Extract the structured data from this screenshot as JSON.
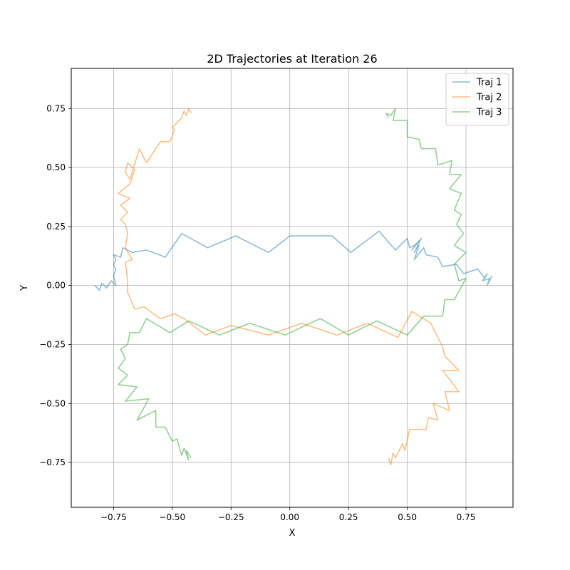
{
  "chart_data": {
    "type": "line",
    "title": "2D Trajectories at Iteration 26",
    "xlabel": "X",
    "ylabel": "Y",
    "xlim": [
      -0.93,
      0.95
    ],
    "ylim": [
      -0.94,
      0.92
    ],
    "xticks": [
      -0.75,
      -0.5,
      -0.25,
      0.0,
      0.25,
      0.5,
      0.75
    ],
    "xtick_labels": [
      "−0.75",
      "−0.50",
      "−0.25",
      "0.00",
      "0.25",
      "0.50",
      "0.75"
    ],
    "yticks": [
      -0.75,
      -0.5,
      -0.25,
      0.0,
      0.25,
      0.5,
      0.75
    ],
    "ytick_labels": [
      "−0.75",
      "−0.50",
      "−0.25",
      "0.00",
      "0.25",
      "0.50",
      "0.75"
    ],
    "grid": true,
    "legend_position": "top-right",
    "series": [
      {
        "name": "Traj 1",
        "color": "#1f77b4",
        "points": [
          [
            -0.83,
            0.0
          ],
          [
            -0.81,
            -0.02
          ],
          [
            -0.8,
            0.01
          ],
          [
            -0.78,
            -0.01
          ],
          [
            -0.76,
            0.02
          ],
          [
            -0.74,
            0.0
          ],
          [
            -0.75,
            0.04
          ],
          [
            -0.74,
            0.07
          ],
          [
            -0.75,
            0.09
          ],
          [
            -0.74,
            0.11
          ],
          [
            -0.75,
            0.13
          ],
          [
            -0.72,
            0.12
          ],
          [
            -0.71,
            0.16
          ],
          [
            -0.67,
            0.14
          ],
          [
            -0.61,
            0.15
          ],
          [
            -0.53,
            0.12
          ],
          [
            -0.46,
            0.22
          ],
          [
            -0.35,
            0.16
          ],
          [
            -0.23,
            0.21
          ],
          [
            -0.09,
            0.14
          ],
          [
            0.0,
            0.21
          ],
          [
            0.18,
            0.21
          ],
          [
            0.26,
            0.14
          ],
          [
            0.38,
            0.23
          ],
          [
            0.45,
            0.15
          ],
          [
            0.5,
            0.2
          ],
          [
            0.51,
            0.16
          ],
          [
            0.53,
            0.17
          ],
          [
            0.55,
            0.19
          ],
          [
            0.52,
            0.15
          ],
          [
            0.56,
            0.2
          ],
          [
            0.53,
            0.14
          ],
          [
            0.55,
            0.17
          ],
          [
            0.53,
            0.11
          ],
          [
            0.57,
            0.16
          ],
          [
            0.58,
            0.13
          ],
          [
            0.63,
            0.12
          ],
          [
            0.65,
            0.08
          ],
          [
            0.71,
            0.09
          ],
          [
            0.74,
            0.05
          ],
          [
            0.8,
            0.07
          ],
          [
            0.83,
            0.03
          ],
          [
            0.84,
            0.05
          ],
          [
            0.82,
            0.02
          ],
          [
            0.85,
            0.03
          ],
          [
            0.84,
            0.0
          ],
          [
            0.86,
            0.04
          ]
        ]
      },
      {
        "name": "Traj 2",
        "color": "#ff7f0e",
        "points": [
          [
            -0.42,
            0.73
          ],
          [
            -0.43,
            0.75
          ],
          [
            -0.44,
            0.72
          ],
          [
            -0.45,
            0.74
          ],
          [
            -0.46,
            0.71
          ],
          [
            -0.5,
            0.67
          ],
          [
            -0.49,
            0.66
          ],
          [
            -0.51,
            0.61
          ],
          [
            -0.55,
            0.61
          ],
          [
            -0.61,
            0.52
          ],
          [
            -0.64,
            0.58
          ],
          [
            -0.68,
            0.45
          ],
          [
            -0.7,
            0.48
          ],
          [
            -0.69,
            0.52
          ],
          [
            -0.66,
            0.49
          ],
          [
            -0.68,
            0.43
          ],
          [
            -0.73,
            0.39
          ],
          [
            -0.68,
            0.37
          ],
          [
            -0.72,
            0.34
          ],
          [
            -0.69,
            0.31
          ],
          [
            -0.72,
            0.28
          ],
          [
            -0.7,
            0.26
          ],
          [
            -0.69,
            0.22
          ],
          [
            -0.7,
            0.16
          ],
          [
            -0.67,
            0.11
          ],
          [
            -0.7,
            0.1
          ],
          [
            -0.69,
            0.02
          ],
          [
            -0.69,
            -0.03
          ],
          [
            -0.66,
            -0.1
          ],
          [
            -0.62,
            -0.09
          ],
          [
            -0.58,
            -0.12
          ],
          [
            -0.55,
            -0.14
          ],
          [
            -0.49,
            -0.12
          ],
          [
            -0.45,
            -0.14
          ],
          [
            -0.36,
            -0.21
          ],
          [
            -0.25,
            -0.17
          ],
          [
            -0.09,
            -0.21
          ],
          [
            0.05,
            -0.16
          ],
          [
            0.2,
            -0.21
          ],
          [
            0.33,
            -0.16
          ],
          [
            0.46,
            -0.22
          ],
          [
            0.52,
            -0.11
          ],
          [
            0.6,
            -0.16
          ],
          [
            0.62,
            -0.2
          ],
          [
            0.65,
            -0.26
          ],
          [
            0.66,
            -0.3
          ],
          [
            0.72,
            -0.36
          ],
          [
            0.65,
            -0.36
          ],
          [
            0.72,
            -0.45
          ],
          [
            0.66,
            -0.45
          ],
          [
            0.68,
            -0.53
          ],
          [
            0.61,
            -0.5
          ],
          [
            0.63,
            -0.57
          ],
          [
            0.59,
            -0.56
          ],
          [
            0.58,
            -0.61
          ],
          [
            0.51,
            -0.61
          ],
          [
            0.49,
            -0.7
          ],
          [
            0.48,
            -0.67
          ],
          [
            0.46,
            -0.71
          ],
          [
            0.45,
            -0.73
          ],
          [
            0.44,
            -0.71
          ],
          [
            0.43,
            -0.76
          ],
          [
            0.42,
            -0.73
          ]
        ]
      },
      {
        "name": "Traj 3",
        "color": "#2ca02c",
        "points": [
          [
            0.42,
            0.71
          ],
          [
            0.41,
            0.73
          ],
          [
            0.43,
            0.72
          ],
          [
            0.45,
            0.75
          ],
          [
            0.44,
            0.7
          ],
          [
            0.5,
            0.7
          ],
          [
            0.5,
            0.63
          ],
          [
            0.55,
            0.62
          ],
          [
            0.56,
            0.58
          ],
          [
            0.62,
            0.58
          ],
          [
            0.63,
            0.51
          ],
          [
            0.69,
            0.53
          ],
          [
            0.68,
            0.47
          ],
          [
            0.73,
            0.47
          ],
          [
            0.68,
            0.41
          ],
          [
            0.73,
            0.39
          ],
          [
            0.7,
            0.32
          ],
          [
            0.73,
            0.3
          ],
          [
            0.71,
            0.26
          ],
          [
            0.74,
            0.22
          ],
          [
            0.7,
            0.17
          ],
          [
            0.75,
            0.14
          ],
          [
            0.7,
            0.09
          ],
          [
            0.72,
            0.02
          ],
          [
            0.75,
            0.03
          ],
          [
            0.7,
            -0.06
          ],
          [
            0.66,
            -0.06
          ],
          [
            0.65,
            -0.13
          ],
          [
            0.57,
            -0.13
          ],
          [
            0.5,
            -0.21
          ],
          [
            0.37,
            -0.15
          ],
          [
            0.25,
            -0.21
          ],
          [
            0.13,
            -0.14
          ],
          [
            -0.02,
            -0.21
          ],
          [
            -0.17,
            -0.16
          ],
          [
            -0.3,
            -0.21
          ],
          [
            -0.43,
            -0.15
          ],
          [
            -0.51,
            -0.2
          ],
          [
            -0.61,
            -0.14
          ],
          [
            -0.64,
            -0.2
          ],
          [
            -0.68,
            -0.2
          ],
          [
            -0.69,
            -0.25
          ],
          [
            -0.72,
            -0.27
          ],
          [
            -0.7,
            -0.31
          ],
          [
            -0.73,
            -0.35
          ],
          [
            -0.69,
            -0.38
          ],
          [
            -0.73,
            -0.42
          ],
          [
            -0.65,
            -0.43
          ],
          [
            -0.7,
            -0.49
          ],
          [
            -0.6,
            -0.48
          ],
          [
            -0.65,
            -0.57
          ],
          [
            -0.57,
            -0.53
          ],
          [
            -0.57,
            -0.6
          ],
          [
            -0.53,
            -0.6
          ],
          [
            -0.5,
            -0.66
          ],
          [
            -0.48,
            -0.65
          ],
          [
            -0.46,
            -0.72
          ],
          [
            -0.45,
            -0.69
          ],
          [
            -0.43,
            -0.74
          ],
          [
            -0.44,
            -0.7
          ],
          [
            -0.42,
            -0.73
          ]
        ]
      }
    ]
  }
}
